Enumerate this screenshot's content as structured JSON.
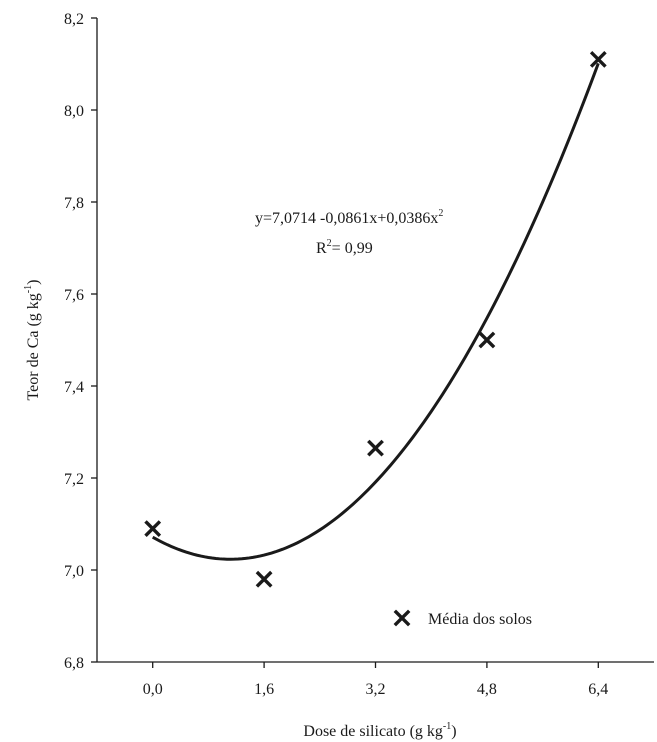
{
  "chart_data": {
    "type": "scatter",
    "xlabel": "Dose de silicato (g kg",
    "xlabel_sup": "-1",
    "xlabel_end": ")",
    "ylabel": "Teor de Ca (g kg",
    "ylabel_sup": "-1",
    "ylabel_end": ")",
    "xlim": [
      -0.8,
      7.2
    ],
    "ylim": [
      6.8,
      8.2
    ],
    "x_ticks": [
      0.0,
      1.6,
      3.2,
      4.8,
      6.4
    ],
    "x_tick_labels": [
      "0,0",
      "1,6",
      "3,2",
      "4,8",
      "6,4"
    ],
    "y_ticks": [
      6.8,
      7.0,
      7.2,
      7.4,
      7.6,
      7.8,
      8.0,
      8.2
    ],
    "y_tick_labels": [
      "6,8",
      "7,0",
      "7,2",
      "7,4",
      "7,6",
      "7,8",
      "8,0",
      "8,2"
    ],
    "grid": false,
    "series": [
      {
        "name": "Média dos solos",
        "marker": "x",
        "color": "#1a1a1a",
        "x": [
          0.0,
          1.6,
          3.2,
          4.8,
          6.4
        ],
        "y": [
          7.09,
          6.98,
          7.265,
          7.5,
          8.11
        ]
      }
    ],
    "fit": {
      "equation": "y=7,0714 -0,0861x+0,0386x",
      "equation_sup": "2",
      "r2_prefix": "R",
      "r2_sup": "2",
      "r2_value": "= 0,99",
      "coefficients": [
        7.0714,
        -0.0861,
        0.0386
      ],
      "x_range": [
        0.0,
        6.4
      ],
      "color": "#1a1a1a"
    },
    "legend": {
      "placement": "bottom-right",
      "label": "Média dos solos"
    }
  }
}
